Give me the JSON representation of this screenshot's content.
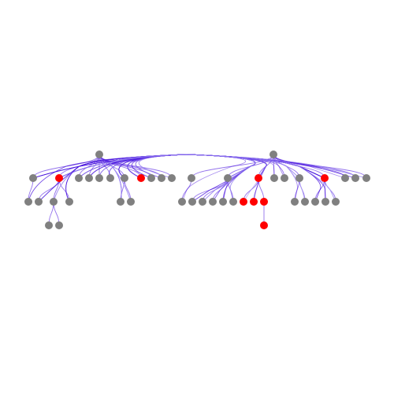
{
  "diagram": {
    "type": "hierarchical-edge-bundle-tree",
    "colors": {
      "background": "#ffffff",
      "node_default": "#808080",
      "node_highlight": "#ff0000",
      "edge_dark": "#3c00dc",
      "edge_light": "#a89af5"
    },
    "levels": 4,
    "roots": [
      "A",
      "B"
    ],
    "nodes": [
      {
        "id": "A",
        "parent": null,
        "highlight": false
      },
      {
        "id": "B",
        "parent": null,
        "highlight": false
      },
      {
        "id": "a1",
        "parent": "A",
        "highlight": false
      },
      {
        "id": "a2",
        "parent": "A",
        "highlight": true
      },
      {
        "id": "a3",
        "parent": "A",
        "highlight": false
      },
      {
        "id": "a4",
        "parent": "A",
        "highlight": false
      },
      {
        "id": "a5",
        "parent": "A",
        "highlight": false
      },
      {
        "id": "a6",
        "parent": "A",
        "highlight": false
      },
      {
        "id": "a7",
        "parent": "A",
        "highlight": false
      },
      {
        "id": "a8",
        "parent": "A",
        "highlight": true
      },
      {
        "id": "a9",
        "parent": "A",
        "highlight": false
      },
      {
        "id": "a10",
        "parent": "A",
        "highlight": false
      },
      {
        "id": "a11",
        "parent": "A",
        "highlight": false
      },
      {
        "id": "b1",
        "parent": "B",
        "highlight": false
      },
      {
        "id": "b2",
        "parent": "B",
        "highlight": false
      },
      {
        "id": "b3",
        "parent": "B",
        "highlight": true
      },
      {
        "id": "b4",
        "parent": "B",
        "highlight": false
      },
      {
        "id": "b5",
        "parent": "B",
        "highlight": false
      },
      {
        "id": "b6",
        "parent": "B",
        "highlight": false
      },
      {
        "id": "b7",
        "parent": "B",
        "highlight": true
      },
      {
        "id": "b8",
        "parent": "B",
        "highlight": false
      },
      {
        "id": "b9",
        "parent": "B",
        "highlight": false
      },
      {
        "id": "b10",
        "parent": "B",
        "highlight": false
      },
      {
        "id": "c1",
        "parent": "a1",
        "highlight": false
      },
      {
        "id": "c2",
        "parent": "a2",
        "highlight": false
      },
      {
        "id": "c3",
        "parent": "a2",
        "highlight": false
      },
      {
        "id": "c4",
        "parent": "a2",
        "highlight": false
      },
      {
        "id": "c5",
        "parent": "a7",
        "highlight": false
      },
      {
        "id": "c6",
        "parent": "a7",
        "highlight": false
      },
      {
        "id": "c7",
        "parent": "b1",
        "highlight": false
      },
      {
        "id": "c8",
        "parent": "b2",
        "highlight": false
      },
      {
        "id": "c9",
        "parent": "b2",
        "highlight": false
      },
      {
        "id": "c10",
        "parent": "b2",
        "highlight": false
      },
      {
        "id": "c11",
        "parent": "b2",
        "highlight": false
      },
      {
        "id": "c12",
        "parent": "b2",
        "highlight": false
      },
      {
        "id": "c13",
        "parent": "b3",
        "highlight": true
      },
      {
        "id": "c14",
        "parent": "b3",
        "highlight": true
      },
      {
        "id": "c15",
        "parent": "b3",
        "highlight": true
      },
      {
        "id": "c16",
        "parent": "b6",
        "highlight": false
      },
      {
        "id": "c17",
        "parent": "b6",
        "highlight": false
      },
      {
        "id": "c18",
        "parent": "b7",
        "highlight": false
      },
      {
        "id": "c19",
        "parent": "b7",
        "highlight": false
      },
      {
        "id": "c20",
        "parent": "b7",
        "highlight": false
      },
      {
        "id": "d1",
        "parent": "c3",
        "highlight": false
      },
      {
        "id": "d2",
        "parent": "c3",
        "highlight": false
      },
      {
        "id": "d3",
        "parent": "c15",
        "highlight": true
      }
    ],
    "bundled_links": [
      [
        "a1",
        "b2"
      ],
      [
        "a1",
        "b3"
      ],
      [
        "a1",
        "b7"
      ],
      [
        "a2",
        "b2"
      ],
      [
        "a2",
        "b3"
      ],
      [
        "a2",
        "b5"
      ],
      [
        "a2",
        "b7"
      ],
      [
        "a2",
        "b9"
      ],
      [
        "a3",
        "b3"
      ],
      [
        "a3",
        "b7"
      ],
      [
        "a4",
        "b2"
      ],
      [
        "a4",
        "b3"
      ],
      [
        "a5",
        "b3"
      ],
      [
        "a5",
        "b6"
      ],
      [
        "a6",
        "b3"
      ],
      [
        "a6",
        "b7"
      ],
      [
        "a6",
        "b8"
      ],
      [
        "a7",
        "b2"
      ],
      [
        "a7",
        "b3"
      ],
      [
        "a7",
        "b7"
      ],
      [
        "a7",
        "b10"
      ],
      [
        "a8",
        "b2"
      ],
      [
        "a8",
        "b3"
      ],
      [
        "a8",
        "b4"
      ],
      [
        "a8",
        "b6"
      ],
      [
        "a8",
        "b7"
      ],
      [
        "a8",
        "b9"
      ],
      [
        "a8",
        "b10"
      ],
      [
        "a9",
        "b3"
      ],
      [
        "a9",
        "b7"
      ],
      [
        "a10",
        "b3"
      ],
      [
        "a10",
        "b2"
      ],
      [
        "a11",
        "b3"
      ],
      [
        "a11",
        "b7"
      ],
      [
        "c1",
        "b3"
      ],
      [
        "c1",
        "b7"
      ],
      [
        "c2",
        "b3"
      ],
      [
        "c3",
        "b7"
      ],
      [
        "c4",
        "b2"
      ],
      [
        "c5",
        "b3"
      ],
      [
        "c5",
        "b7"
      ],
      [
        "c6",
        "b3"
      ],
      [
        "c6",
        "b2"
      ],
      [
        "a1",
        "c8"
      ],
      [
        "a2",
        "c9"
      ],
      [
        "a2",
        "c10"
      ],
      [
        "a3",
        "c11"
      ],
      [
        "a4",
        "c12"
      ],
      [
        "a8",
        "c13"
      ],
      [
        "a8",
        "c14"
      ],
      [
        "a2",
        "c16"
      ],
      [
        "a8",
        "c17"
      ],
      [
        "a7",
        "c18"
      ],
      [
        "a8",
        "c19"
      ],
      [
        "a2",
        "c20"
      ],
      [
        "a1",
        "c7"
      ],
      [
        "c2",
        "c8"
      ],
      [
        "c3",
        "c9"
      ],
      [
        "c4",
        "c10"
      ],
      [
        "c5",
        "c11"
      ],
      [
        "c6",
        "c12"
      ],
      [
        "c2",
        "c18"
      ],
      [
        "c4",
        "c19"
      ],
      [
        "c5",
        "c20"
      ]
    ]
  }
}
